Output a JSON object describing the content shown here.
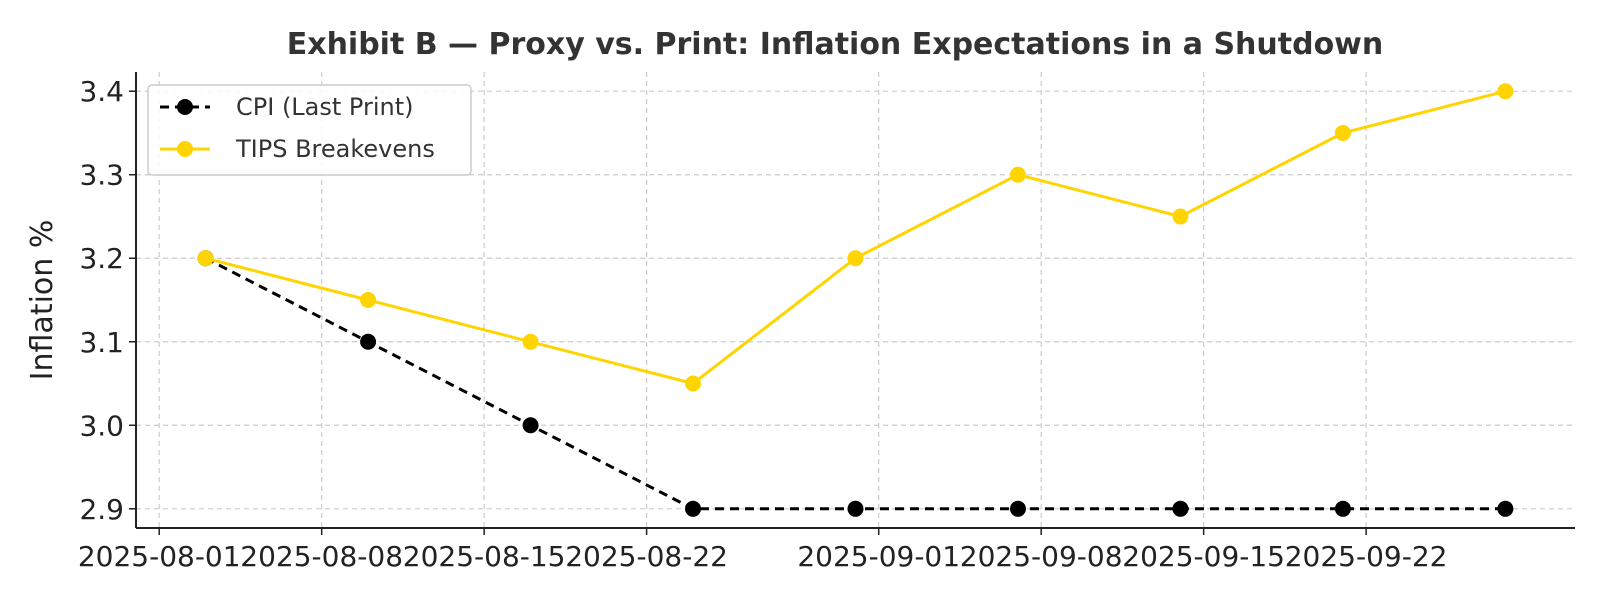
{
  "chart_data": {
    "type": "line",
    "title": "Exhibit B — Proxy vs. Print: Inflation Expectations in a Shutdown",
    "xlabel": "",
    "ylabel": "Inflation %",
    "x": [
      "2025-08-03",
      "2025-08-10",
      "2025-08-17",
      "2025-08-24",
      "2025-08-31",
      "2025-09-07",
      "2025-09-14",
      "2025-09-21",
      "2025-09-28"
    ],
    "x_ticks": [
      "2025-08-01",
      "2025-08-08",
      "2025-08-15",
      "2025-08-22",
      "2025-09-01",
      "2025-09-08",
      "2025-09-15",
      "2025-09-22"
    ],
    "xlim": [
      "2025-07-31",
      "2025-10-01"
    ],
    "y_ticks": [
      "2.9",
      "3.0",
      "3.1",
      "3.2",
      "3.3",
      "3.4"
    ],
    "ylim": [
      2.877,
      3.423
    ],
    "grid": true,
    "legend_position": "top-left",
    "series": [
      {
        "name": "CPI (Last Print)",
        "color": "#000000",
        "style": "dashed",
        "marker": "circle",
        "values": [
          3.2,
          3.1,
          3.0,
          2.9,
          2.9,
          2.9,
          2.9,
          2.9,
          2.9
        ]
      },
      {
        "name": "TIPS Breakevens",
        "color": "#FFD400",
        "style": "solid",
        "marker": "circle",
        "values": [
          3.2,
          3.15,
          3.1,
          3.05,
          3.2,
          3.3,
          3.25,
          3.35,
          3.4
        ]
      }
    ]
  }
}
